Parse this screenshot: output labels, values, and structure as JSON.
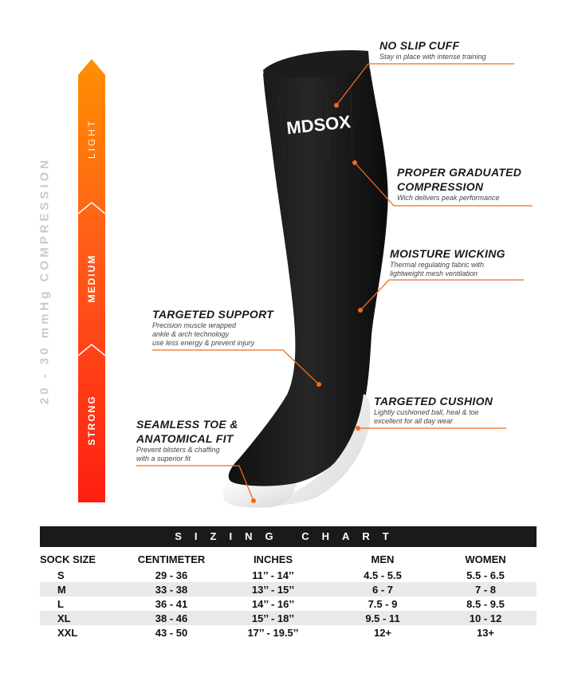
{
  "compression": {
    "title": "20 - 30 mmHg COMPRESSION",
    "levels": [
      "LIGHT",
      "MEDIUM",
      "STRONG"
    ],
    "colors": {
      "top": "#ff8c00",
      "mid": "#ff5a1a",
      "bottom": "#ff2a12"
    }
  },
  "brand": {
    "logo_text": "MDSOX"
  },
  "callouts": {
    "no_slip": {
      "title": "NO SLIP CUFF",
      "desc": [
        "Stay in place with intense training"
      ]
    },
    "graduated": {
      "title": [
        "PROPER GRADUATED",
        "COMPRESSION"
      ],
      "desc": [
        "Wich delivers peak performance"
      ]
    },
    "moisture": {
      "title": "MOISTURE WICKING",
      "desc": [
        "Thermal regulating fabric with",
        "lightweight mesh ventilation"
      ]
    },
    "support": {
      "title": "TARGETED SUPPORT",
      "desc": [
        "Precision muscle wrapped",
        "ankle & arch technology",
        "use less energy & prevent injury"
      ]
    },
    "cushion": {
      "title": "TARGETED CUSHION",
      "desc": [
        "Lightly cushioned ball, heal & toe",
        "excellent for all day wear"
      ]
    },
    "toe": {
      "title": [
        "SEAMLESS TOE &",
        "ANATOMICAL FIT"
      ],
      "desc": [
        "Prevent blisters & chaffing",
        "with a superior fit"
      ]
    }
  },
  "accent_color": "#f26a1b",
  "sizing_chart": {
    "title": "SIZING CHART",
    "headers": [
      "SOCK SIZE",
      "CENTIMETER",
      "INCHES",
      "MEN",
      "WOMEN"
    ],
    "rows": [
      [
        "S",
        "29 - 36",
        "11’’ - 14’’",
        "4.5 - 5.5",
        "5.5 - 6.5"
      ],
      [
        "M",
        "33 - 38",
        "13’’ - 15’’",
        "6 - 7",
        "7 - 8"
      ],
      [
        "L",
        "36 - 41",
        "14’’ - 16’’",
        "7.5 - 9",
        "8.5 - 9.5"
      ],
      [
        "XL",
        "38 - 46",
        "15’’ - 18’’",
        "9.5 - 11",
        "10 - 12"
      ],
      [
        "XXL",
        "43 - 50",
        "17’’ - 19.5’’",
        "12+",
        "13+"
      ]
    ]
  }
}
